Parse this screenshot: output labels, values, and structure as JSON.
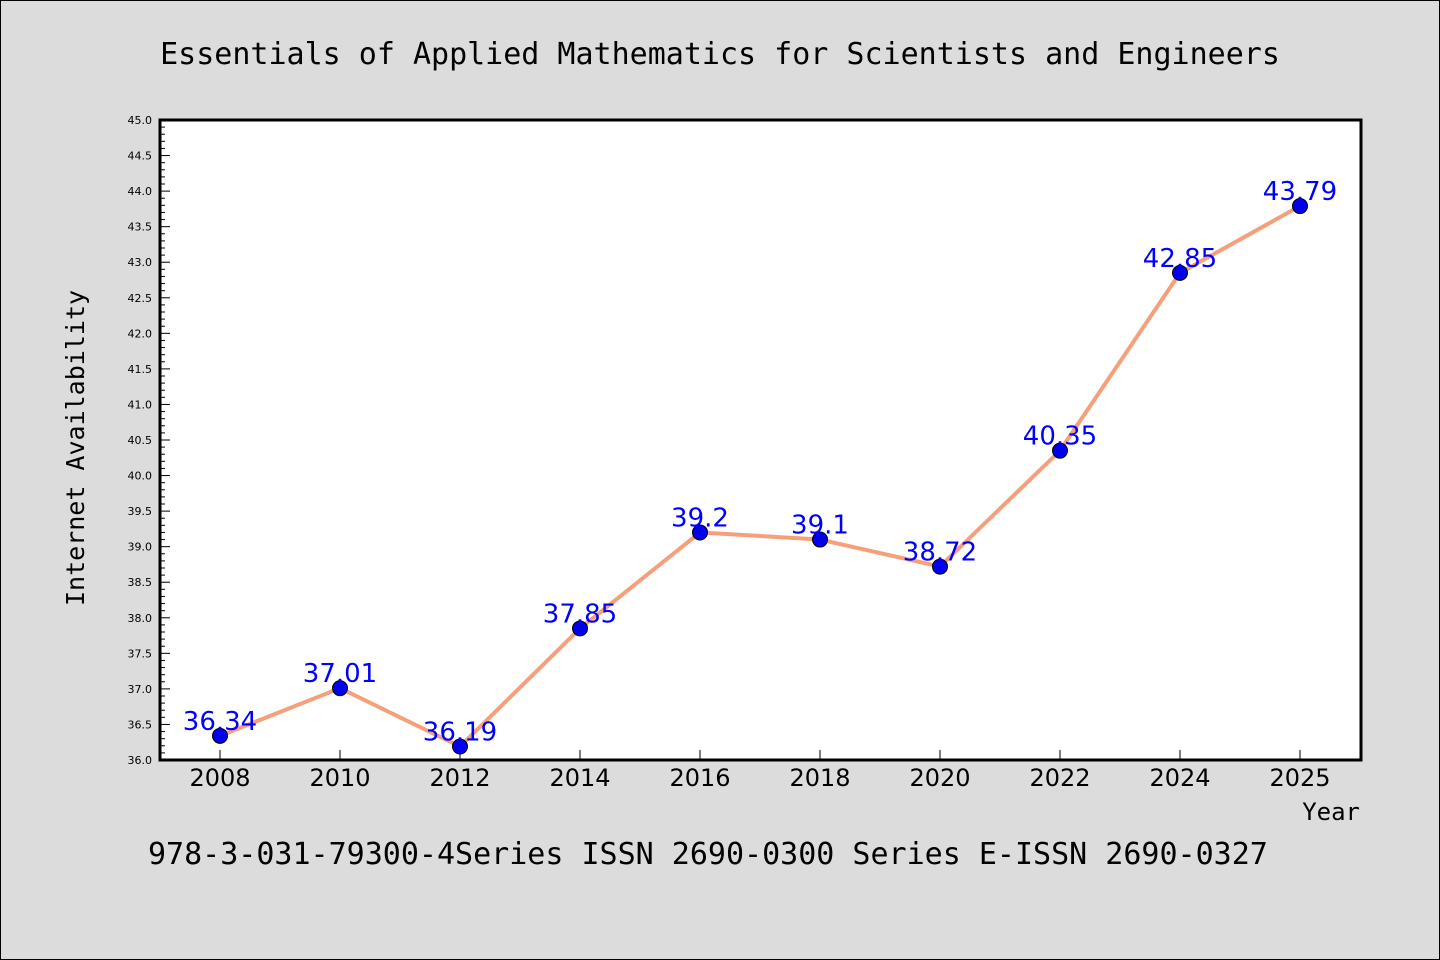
{
  "chart_data": {
    "type": "line",
    "title": "Essentials of Applied Mathematics for Scientists and Engineers",
    "xlabel": "Year",
    "ylabel": "Internet Availability",
    "footer": "978-3-031-79300-4Series ISSN 2690-0300 Series E-ISSN 2690-0327",
    "categories": [
      "2008",
      "2010",
      "2012",
      "2014",
      "2016",
      "2018",
      "2020",
      "2022",
      "2024",
      "2025"
    ],
    "series": [
      {
        "values": [
          36.34,
          37.01,
          36.19,
          37.85,
          39.2,
          39.1,
          38.72,
          40.35,
          42.85,
          43.79
        ],
        "labels": [
          "36.34",
          "37.01",
          "36.19",
          "37.85",
          "39.2",
          "39.1",
          "38.72",
          "40.35",
          "42.85",
          "43.79"
        ],
        "line_color": "#f5a07a",
        "marker_color": "#0000ee",
        "label_color": "#0000ff"
      }
    ],
    "ylim": [
      36.0,
      45.0
    ],
    "yticks": [
      "36.0",
      "36.5",
      "37.0",
      "37.5",
      "38.0",
      "38.5",
      "39.0",
      "39.5",
      "40.0",
      "40.5",
      "41.0",
      "41.5",
      "42.0",
      "42.5",
      "43.0",
      "43.5",
      "44.0",
      "44.5",
      "45.0"
    ],
    "grid": false,
    "legend": "none",
    "background": "#dcdcdc",
    "plot_background": "#ffffff"
  }
}
